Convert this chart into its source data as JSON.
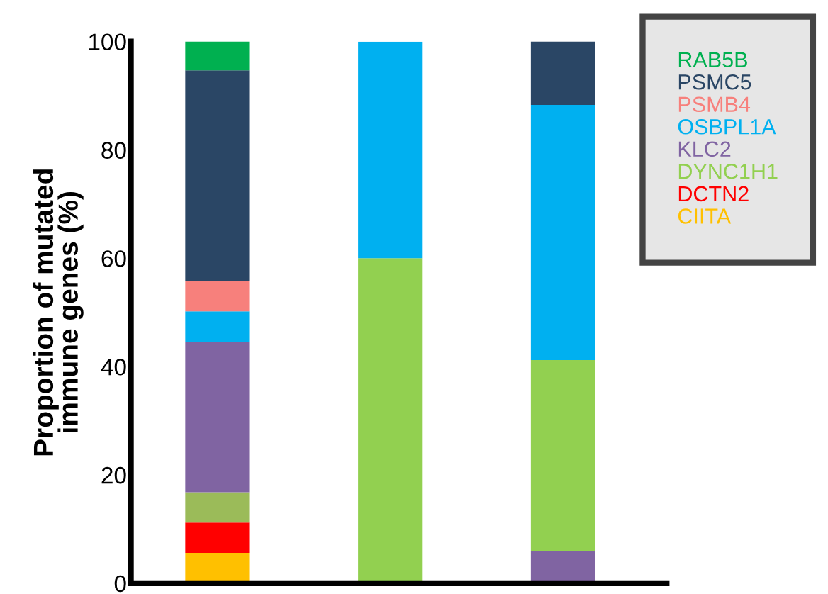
{
  "chart_data": {
    "type": "bar",
    "stacked": true,
    "ylabel": "Proportion of mutated\nimmune genes (%)",
    "categories": [
      null,
      null,
      null
    ],
    "series": [
      {
        "color": "#8064a2",
        "values": [
          null,
          null,
          5.9
        ]
      },
      {
        "name": "CIITA",
        "color": "#ffc000",
        "values": [
          5.6,
          null,
          null
        ]
      },
      {
        "name": "DCTN2",
        "color": "#ff0000",
        "values": [
          5.6,
          null,
          null
        ]
      },
      {
        "name": "DYNC1H1",
        "color": "#92d050",
        "colors": [
          "#9bbb59",
          "#92d050",
          "#92d050"
        ],
        "values": [
          5.6,
          60,
          35.3
        ]
      },
      {
        "name": "KLC2",
        "color": "#8064a2",
        "values": [
          27.8,
          null,
          null
        ]
      },
      {
        "name": "OSBPL1A",
        "color": "#00b0f0",
        "values": [
          5.6,
          40,
          47.1
        ]
      },
      {
        "name": "PSMB4",
        "color": "#f7807c",
        "values": [
          5.6,
          null,
          null
        ]
      },
      {
        "name": "PSMC5",
        "color": "#2a4665",
        "values": [
          38.9,
          null,
          11.8
        ]
      },
      {
        "name": "RAB5B",
        "color": "#00b050",
        "values": [
          5.6,
          null,
          null
        ]
      }
    ],
    "ylim": [
      0,
      100
    ],
    "yticks": [
      0,
      20,
      40,
      60,
      80,
      100
    ],
    "grid": false,
    "legend": "top right"
  }
}
